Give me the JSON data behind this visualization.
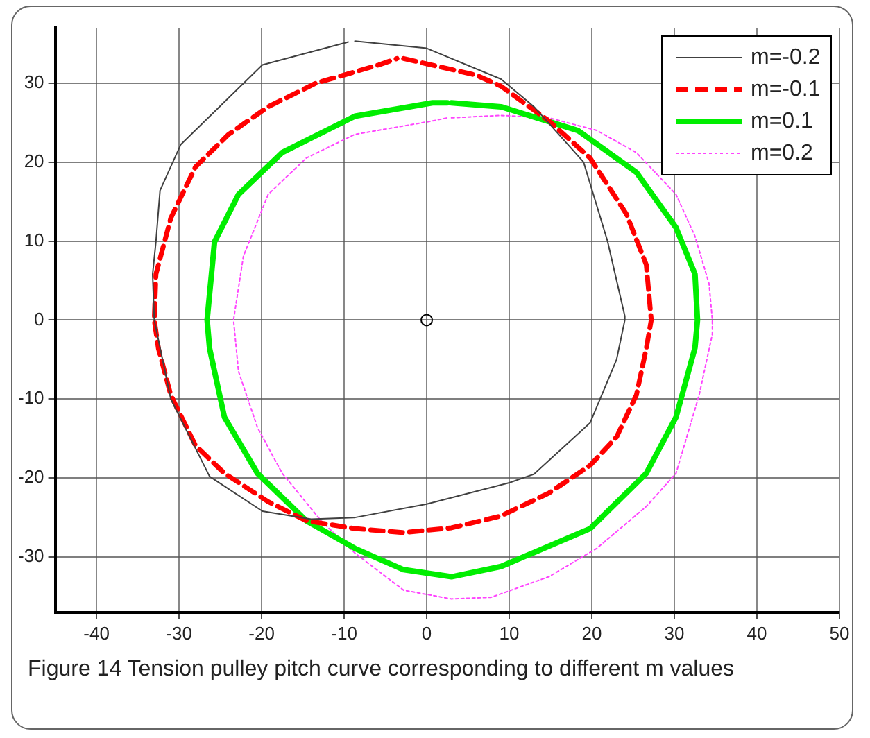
{
  "chart_data": {
    "type": "line",
    "annotations": [
      "Figure 14  Tension pulley pitch curve corresponding to different m values"
    ],
    "xlim": [
      -45,
      50
    ],
    "xticks": [
      -40,
      -30,
      -20,
      -10,
      0,
      10,
      20,
      30,
      40,
      50
    ],
    "ylim": [
      -37,
      37
    ],
    "yticks": [
      -30,
      -20,
      -10,
      0,
      10,
      20,
      30
    ],
    "grid": true,
    "legend": "top right",
    "marker": "none",
    "series": [
      {
        "name": "m=-0.2",
        "color": "#404040",
        "line_style": "solid",
        "x": [
          -8.7,
          0,
          9,
          13,
          19,
          21.9,
          24,
          24,
          23,
          19.8,
          13,
          10,
          0,
          -8.7,
          -14,
          -19.9,
          -26.3,
          -31,
          -33,
          -33.2,
          -32.8,
          -32.3,
          -29.8,
          -19.9,
          -9.5
        ],
        "values": [
          35.3,
          34.4,
          30.5,
          27,
          20,
          10,
          0.5,
          0,
          -5,
          -13,
          -19.5,
          -20.6,
          -23.3,
          -25,
          -25.2,
          -24.2,
          -19.8,
          -10,
          0,
          5.8,
          9.9,
          16.4,
          22.2,
          32.3,
          35.2
        ]
      },
      {
        "name": "m=-0.1",
        "color": "#ff0000",
        "line_style": "dashed",
        "x": [
          -2.8,
          6,
          9,
          14.8,
          19.8,
          24.2,
          26.6,
          27.2,
          26.6,
          25.4,
          23,
          19.8,
          14.8,
          9,
          3,
          -2.8,
          -8.7,
          -14.6,
          -19.2,
          -24.5,
          -28,
          -31,
          -32.5,
          -33,
          -32.8,
          -31,
          -28,
          -24,
          -19.2,
          -13.4,
          -5.8,
          -3.6
        ],
        "values": [
          33.1,
          31,
          29.6,
          25.2,
          20.5,
          13.4,
          7,
          0,
          -3.6,
          -9.5,
          -14.8,
          -18.4,
          -21.9,
          -24.8,
          -26.3,
          -26.9,
          -26.4,
          -25.4,
          -23,
          -19.4,
          -15.9,
          -9.5,
          -3.6,
          0,
          5.8,
          12.9,
          19.4,
          23.5,
          27,
          30,
          32.3,
          33.1
        ]
      },
      {
        "name": "m=0.1",
        "color": "#00ee00",
        "line_style": "solid",
        "x": [
          3,
          9,
          18.3,
          25.4,
          30.2,
          32.5,
          32.8,
          32.5,
          30.2,
          26.6,
          19.8,
          9,
          3,
          -2.8,
          -8.7,
          -14.6,
          -20.5,
          -24.5,
          -26.3,
          -26.6,
          -25.7,
          -22.8,
          -17.5,
          -8.7,
          0.7,
          2.5
        ],
        "values": [
          27.5,
          27,
          24,
          18.7,
          11.7,
          5.8,
          0,
          -3.5,
          -12.3,
          -19.4,
          -26.4,
          -31.2,
          -32.5,
          -31.6,
          -28.9,
          -25.4,
          -19.4,
          -12.3,
          -3.6,
          0,
          9.9,
          15.9,
          21.2,
          25.8,
          27.5,
          27.5
        ]
      },
      {
        "name": "m=0.2",
        "color": "#ff44ff",
        "line_style": "dotted",
        "x": [
          3,
          9,
          14.8,
          20.6,
          25.4,
          30.2,
          32.5,
          34.2,
          34.6,
          34.6,
          33,
          30.2,
          26.6,
          20.6,
          14.8,
          7.8,
          3,
          -2.8,
          -8.7,
          -12.8,
          -17.5,
          -20.5,
          -22.8,
          -23.4,
          -22.2,
          -19.2,
          -14.6,
          -8.7,
          0.7,
          2.5
        ],
        "values": [
          25.6,
          25.9,
          25.6,
          24,
          21.2,
          15.9,
          10.6,
          4.6,
          0,
          -1.8,
          -9.5,
          -19.4,
          -23.6,
          -28.9,
          -32.5,
          -35.1,
          -35.3,
          -34.2,
          -29.5,
          -25.4,
          -19.4,
          -13.6,
          -6.5,
          0,
          8.1,
          15.9,
          20.5,
          23.5,
          25.2,
          25.6
        ]
      },
      {
        "type": "scatter",
        "color": "#000000",
        "marker": "circle",
        "x": [
          0
        ],
        "values": [
          0
        ]
      }
    ]
  }
}
